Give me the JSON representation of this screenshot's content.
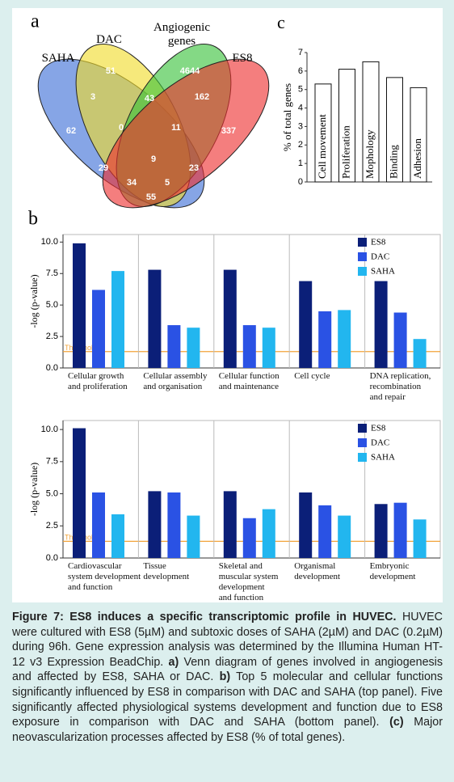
{
  "chart_data": [
    {
      "type": "venn",
      "label": "a",
      "sets": [
        {
          "name": "SAHA",
          "color": "#3b6ed6"
        },
        {
          "name": "DAC",
          "color": "#f0dc2a"
        },
        {
          "name": "Angiogenic\ngenes",
          "color": "#38c23a"
        },
        {
          "name": "ES8",
          "color": "#ee2e2e"
        }
      ],
      "values": [
        62,
        3,
        51,
        0,
        43,
        4644,
        11,
        162,
        337,
        29,
        9,
        34,
        5,
        23,
        55
      ]
    },
    {
      "type": "bar",
      "label": "c",
      "ylabel": "% of total genes",
      "categories": [
        "Cell movement",
        "Proliferation",
        "Mophology",
        "Binding",
        "Adhesion"
      ],
      "values": [
        5.3,
        6.1,
        6.5,
        5.65,
        5.1
      ],
      "ylim": [
        0,
        7
      ],
      "yticks": [
        0,
        1,
        2,
        3,
        4,
        5,
        6,
        7
      ],
      "color": "#ffffff"
    },
    {
      "type": "grouped_bar",
      "label": "b",
      "ylabel": "-log (p-value)",
      "categories": [
        "Cellular growth\nand proliferation",
        "Cellular assembly\nand organisation",
        "Cellular function\nand maintenance",
        "Cell cycle",
        "DNA replication,\nrecombination\nand repair"
      ],
      "series": [
        {
          "name": "ES8",
          "color": "#0b1f78",
          "values": [
            9.9,
            7.8,
            7.8,
            6.9,
            6.9
          ]
        },
        {
          "name": "DAC",
          "color": "#2a52e4",
          "values": [
            6.2,
            3.4,
            3.4,
            4.5,
            4.4
          ]
        },
        {
          "name": "SAHA",
          "color": "#22b6ef",
          "values": [
            7.7,
            3.2,
            3.2,
            4.6,
            2.3
          ]
        }
      ],
      "ylim": [
        0,
        10.6
      ],
      "yticks": [
        {
          "value": 0,
          "label": "0.0"
        },
        {
          "value": 2.5,
          "label": "2.5"
        },
        {
          "value": 5,
          "label": "5.0"
        },
        {
          "value": 7.5,
          "label": "7.5"
        },
        {
          "value": 10,
          "label": "10.0"
        }
      ],
      "threshold": {
        "value": 1.3,
        "label": "Threshold",
        "color": "#f2a33a"
      }
    },
    {
      "type": "grouped_bar",
      "categories": [
        "Cardiovascular\nsystem development\nand function",
        "Tissue\ndevelopment",
        "Skeletal and\nmuscular system\ndevelopment\nand function",
        "Organismal\ndevelopment",
        "Embryonic\ndevelopment"
      ],
      "series": [
        {
          "name": "ES8",
          "color": "#0b1f78",
          "values": [
            10.1,
            5.2,
            5.2,
            5.1,
            4.2
          ]
        },
        {
          "name": "DAC",
          "color": "#2a52e4",
          "values": [
            5.1,
            5.1,
            3.1,
            4.1,
            4.3
          ]
        },
        {
          "name": "SAHA",
          "color": "#22b6ef",
          "values": [
            3.4,
            3.3,
            3.8,
            3.3,
            3.0
          ]
        }
      ],
      "ylabel": "-log (p-value)",
      "ylim": [
        0,
        10.7
      ],
      "yticks": [
        {
          "value": 0,
          "label": "0.0"
        },
        {
          "value": 2.5,
          "label": "2.5"
        },
        {
          "value": 5,
          "label": "5.0"
        },
        {
          "value": 7.5,
          "label": "7.5"
        },
        {
          "value": 10,
          "label": "10.0"
        }
      ],
      "threshold": {
        "value": 1.3,
        "label": "Threshold",
        "color": "#f2a33a"
      }
    }
  ],
  "caption": {
    "title": "Figure 7: ES8 induces a specific transcriptomic profile in HUVEC.",
    "parts": [
      {
        "text": " HUVEC were cultured with ES8 (5µM) and subtoxic doses of SAHA (2µM) and DAC (0.2µM) during 96h.  Gene expression analysis was determined by the Illumina Human HT-12 v3 Expression BeadChip. "
      },
      {
        "text": "a)",
        "bold": true
      },
      {
        "text": " Venn diagram of genes involved in angiogenesis and affected by ES8, SAHA or DAC. "
      },
      {
        "text": "b)",
        "bold": true
      },
      {
        "text": " Top 5 molecular and cellular functions significantly influenced by ES8 in comparison with DAC and SAHA (top panel). Five significantly affected physiological systems development and function due to ES8 exposure in comparison with DAC and SAHA (bottom panel). "
      },
      {
        "text": "(c)",
        "bold": true
      },
      {
        "text": " Major neovascularization processes affected by ES8 (% of total genes)."
      }
    ]
  }
}
